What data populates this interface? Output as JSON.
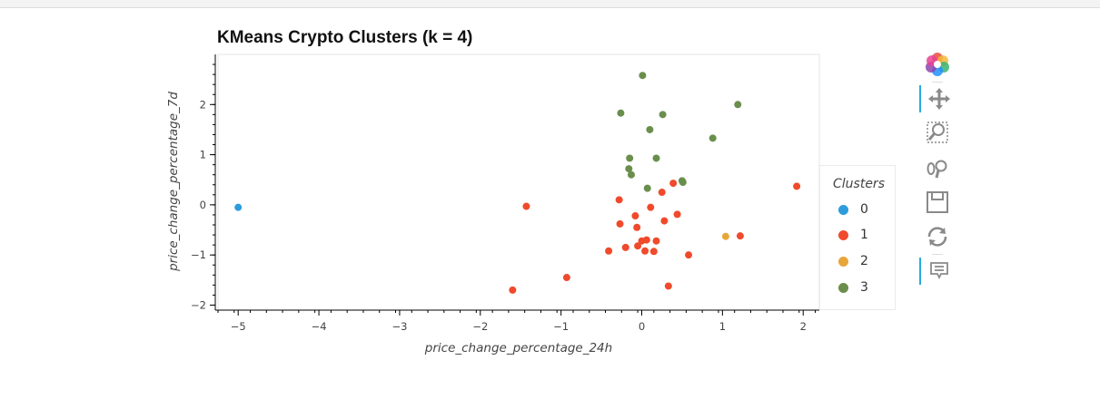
{
  "chart_data": {
    "type": "scatter",
    "title": "KMeans Crypto Clusters (k = 4)",
    "xlabel": "price_change_percentage_24h",
    "ylabel": "price_change_percentage_7d",
    "xlim": [
      -5.25,
      2.2
    ],
    "ylim": [
      -2.1,
      3.0
    ],
    "xticks": [
      -5,
      -4,
      -3,
      -2,
      -1,
      0,
      1,
      2
    ],
    "yticks": [
      -2,
      -1,
      0,
      1,
      2
    ],
    "grid": false,
    "legend_title": "Clusters",
    "legend_position": "right",
    "series": [
      {
        "name": "0",
        "color": "#2c9cdc",
        "points": [
          [
            -5.0,
            -0.05
          ]
        ]
      },
      {
        "name": "1",
        "color": "#f04a2c",
        "points": [
          [
            -1.6,
            -1.7
          ],
          [
            -1.43,
            -0.03
          ],
          [
            -0.93,
            -1.45
          ],
          [
            -0.41,
            -0.92
          ],
          [
            -0.28,
            0.1
          ],
          [
            -0.27,
            -0.38
          ],
          [
            -0.2,
            -0.85
          ],
          [
            -0.08,
            -0.22
          ],
          [
            -0.06,
            -0.45
          ],
          [
            -0.05,
            -0.82
          ],
          [
            0.0,
            -0.72
          ],
          [
            0.04,
            -0.92
          ],
          [
            0.06,
            -0.7
          ],
          [
            0.11,
            -0.05
          ],
          [
            0.15,
            -0.93
          ],
          [
            0.18,
            -0.72
          ],
          [
            0.25,
            0.25
          ],
          [
            0.28,
            -0.32
          ],
          [
            0.33,
            -1.62
          ],
          [
            0.39,
            0.43
          ],
          [
            0.44,
            -0.19
          ],
          [
            0.58,
            -1.0
          ],
          [
            1.22,
            -0.62
          ],
          [
            1.92,
            0.37
          ]
        ]
      },
      {
        "name": "2",
        "color": "#e8a63a",
        "points": [
          [
            1.04,
            -0.63
          ]
        ]
      },
      {
        "name": "3",
        "color": "#6a8f4c",
        "points": [
          [
            0.01,
            2.58
          ],
          [
            -0.26,
            1.83
          ],
          [
            -0.16,
            0.72
          ],
          [
            -0.15,
            0.93
          ],
          [
            -0.13,
            0.6
          ],
          [
            0.07,
            0.33
          ],
          [
            0.1,
            1.5
          ],
          [
            0.18,
            0.93
          ],
          [
            0.26,
            1.8
          ],
          [
            0.5,
            0.48
          ],
          [
            0.51,
            0.45
          ],
          [
            0.88,
            1.33
          ],
          [
            1.19,
            2.0
          ]
        ]
      }
    ]
  },
  "toolbar": [
    "bokeh-logo-icon",
    "pan-icon",
    "box-zoom-icon",
    "wheel-zoom-icon",
    "save-icon",
    "reset-icon",
    "hover-icon"
  ]
}
